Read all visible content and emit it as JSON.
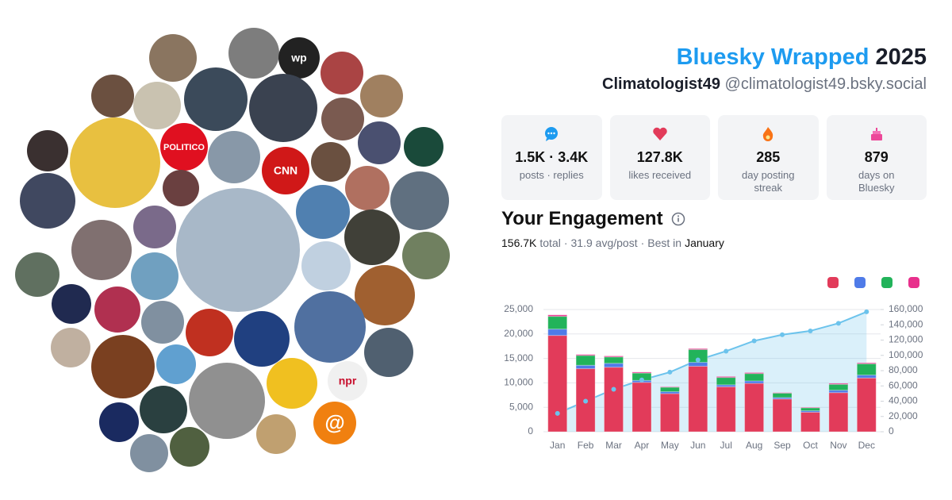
{
  "header": {
    "title": "Bluesky Wrapped",
    "year": "2025",
    "display_name": "Climatologist49",
    "handle": "@climatologist49.bsky.social"
  },
  "stats": [
    {
      "value": "1.5K · 3.4K",
      "label": "posts · replies"
    },
    {
      "value": "127.8K",
      "label": "likes received"
    },
    {
      "value": "285",
      "label": "day posting streak"
    },
    {
      "value": "879",
      "label": "days on Bluesky"
    }
  ],
  "engagement": {
    "title": "Your Engagement",
    "summary": [
      "156.7K",
      "total",
      "·",
      "31.9 avg/post",
      "·",
      "Best in",
      "January"
    ]
  },
  "avatar_logos": [
    "wp",
    "POLITICO",
    "CNN",
    "npr",
    "@"
  ],
  "chart_data": {
    "type": "bar",
    "categories": [
      "Jan",
      "Feb",
      "Mar",
      "Apr",
      "May",
      "Jun",
      "Jul",
      "Aug",
      "Sep",
      "Oct",
      "Nov",
      "Dec"
    ],
    "series": [
      {
        "color": "#e23b5a",
        "values": [
          19700,
          12900,
          13200,
          10100,
          7800,
          13400,
          9200,
          9900,
          6700,
          4000,
          8000,
          11000
        ]
      },
      {
        "color": "#4f7be8",
        "values": [
          1300,
          700,
          800,
          400,
          400,
          800,
          400,
          500,
          300,
          300,
          500,
          600
        ]
      },
      {
        "color": "#22b35a",
        "values": [
          2600,
          2000,
          1300,
          1500,
          900,
          2600,
          1500,
          1500,
          900,
          600,
          1200,
          2300
        ]
      },
      {
        "color": "#e8308c",
        "values": [
          300,
          200,
          200,
          200,
          100,
          200,
          200,
          200,
          100,
          100,
          200,
          200
        ]
      },
      {
        "type": "line",
        "axis": "y2",
        "color": "#6cc3ec",
        "values": [
          24000,
          40000,
          55600,
          67800,
          78000,
          94000,
          105500,
          119000,
          127000,
          132000,
          142000,
          157000
        ]
      }
    ],
    "ylim": [
      0,
      25000
    ],
    "yticks": [
      0,
      {
        "value": 5000,
        "label": "5,000"
      },
      {
        "value": 10000,
        "label": "10,000"
      },
      {
        "value": 15000,
        "label": "15,000"
      },
      {
        "value": 20000,
        "label": "20,000"
      },
      {
        "value": 25000,
        "label": "25,000"
      }
    ],
    "y2lim": [
      0,
      160000
    ],
    "y2ticks": [
      0,
      {
        "value": 20000,
        "label": "20,000"
      },
      {
        "value": 40000,
        "label": "40,000"
      },
      {
        "value": 60000,
        "label": "60,000"
      },
      {
        "value": 80000,
        "label": "80,000"
      },
      {
        "value": 100000,
        "label": "100,000"
      },
      {
        "value": 120000,
        "label": "120,000"
      },
      {
        "value": 140000,
        "label": "140,000"
      },
      {
        "value": 160000,
        "label": "160,000"
      }
    ],
    "grid": true
  }
}
